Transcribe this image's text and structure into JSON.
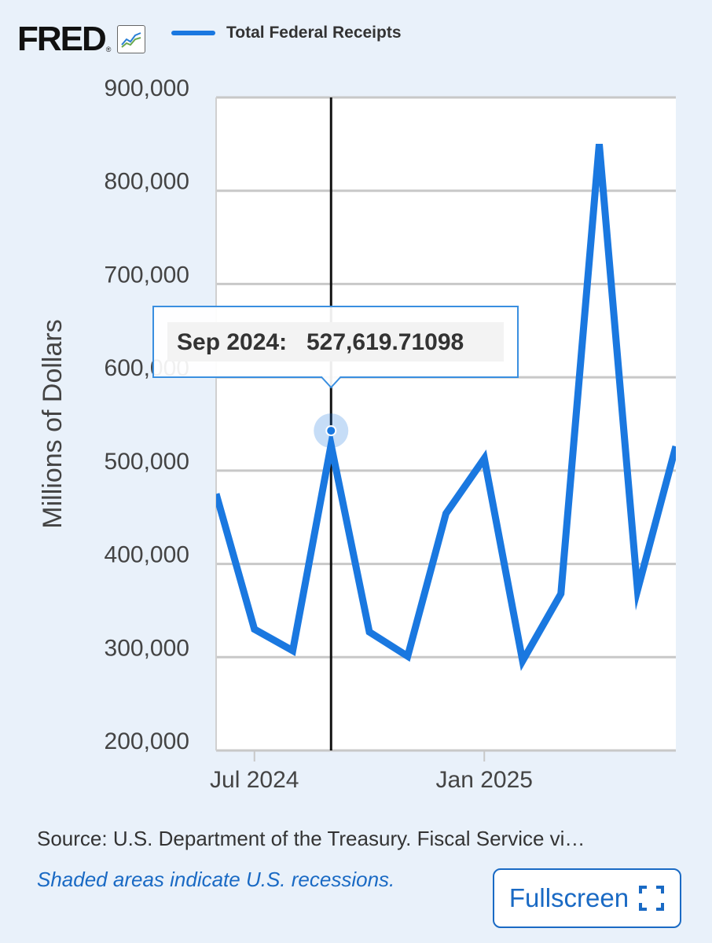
{
  "header": {
    "logo_text": "FRED",
    "logo_reg": "®",
    "logo_icon": "line-chart-icon"
  },
  "legend": {
    "label": "Total Federal Receipts",
    "color": "#1a78e0"
  },
  "chart_data": {
    "type": "line",
    "ylabel": "Millions of Dollars",
    "ylim": [
      200000,
      900000
    ],
    "yticks": [
      200000,
      300000,
      400000,
      500000,
      600000,
      700000,
      800000,
      900000
    ],
    "ytick_labels": [
      "200,000",
      "300,000",
      "400,000",
      "500,000",
      "600,000",
      "700,000",
      "800,000",
      "900,000"
    ],
    "xticks": [
      "2024-07",
      "2025-01"
    ],
    "xtick_labels": [
      "Jul 2024",
      "Jan 2025"
    ],
    "xlim": [
      "2024-06",
      "2025-06"
    ],
    "grid": true,
    "series": [
      {
        "name": "Total Federal Receipts",
        "color": "#1a78e0",
        "x": [
          "2024-06",
          "2024-07",
          "2024-08",
          "2024-09",
          "2024-10",
          "2024-11",
          "2024-12",
          "2025-01",
          "2025-02",
          "2025-03",
          "2025-04",
          "2025-05",
          "2025-06"
        ],
        "y": [
          475000,
          330000,
          307000,
          527619.71098,
          327000,
          301000,
          454000,
          513000,
          296000,
          368000,
          850000,
          372000,
          526000
        ]
      }
    ],
    "tooltip": {
      "x": "2024-09",
      "date_label": "Sep 2024:",
      "value_label": "527,619.71098"
    }
  },
  "footer": {
    "source": "Source: U.S. Department of the Treasury. Fiscal Service vi…",
    "recessions": "Shaded areas indicate U.S. recessions.",
    "fullscreen_label": "Fullscreen",
    "fullscreen_icon": "expand-icon"
  }
}
